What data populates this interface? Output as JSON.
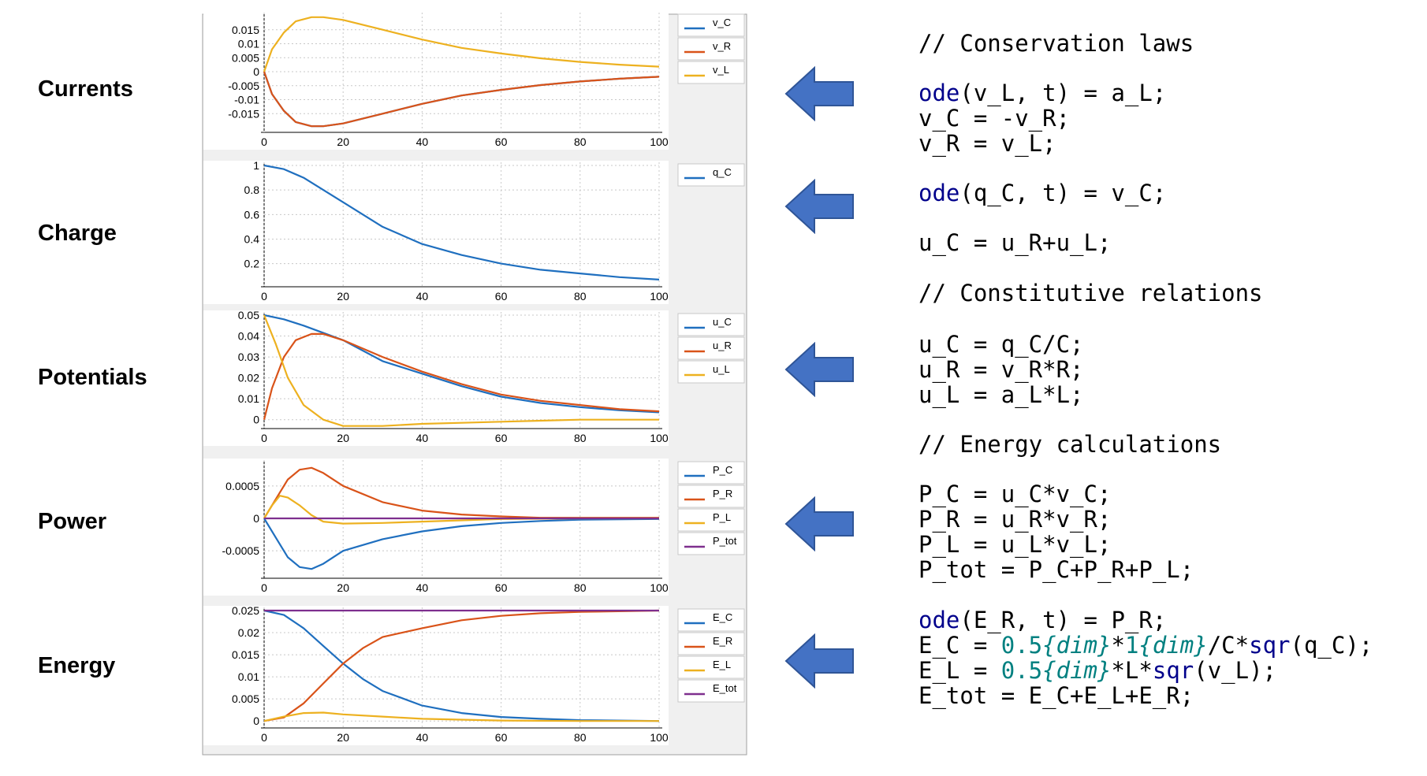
{
  "row_labels": [
    "Currents",
    "Charge",
    "Potentials",
    "Power",
    "Energy"
  ],
  "colors": {
    "blue": "#1f6fbf",
    "orange": "#d95319",
    "yellow": "#edb120",
    "purple": "#7e2f8e",
    "arrow_fill": "#4472c4",
    "arrow_stroke": "#2f5597"
  },
  "chart_data": [
    {
      "type": "line",
      "x_ticks": [
        0,
        20,
        40,
        60,
        80,
        100
      ],
      "y_ticks": [
        "0.015",
        "0.01",
        "0.005",
        "0",
        "-0.005",
        "-0.01",
        "-0.015"
      ],
      "ylim": [
        -0.02,
        0.02
      ],
      "xlim": [
        0,
        100
      ],
      "grid": true,
      "legend": [
        "v_C",
        "v_R",
        "v_L"
      ],
      "series": [
        {
          "name": "v_C",
          "color": "blue",
          "points": [
            [
              0,
              0
            ],
            [
              2,
              -0.008
            ],
            [
              5,
              -0.014
            ],
            [
              8,
              -0.018
            ],
            [
              12,
              -0.0195
            ],
            [
              15,
              -0.0195
            ],
            [
              20,
              -0.0185
            ],
            [
              30,
              -0.015
            ],
            [
              40,
              -0.0115
            ],
            [
              50,
              -0.0085
            ],
            [
              60,
              -0.0065
            ],
            [
              70,
              -0.0048
            ],
            [
              80,
              -0.0035
            ],
            [
              90,
              -0.0025
            ],
            [
              100,
              -0.0018
            ]
          ]
        },
        {
          "name": "v_R",
          "color": "orange",
          "points": [
            [
              0,
              0
            ],
            [
              2,
              -0.008
            ],
            [
              5,
              -0.014
            ],
            [
              8,
              -0.018
            ],
            [
              12,
              -0.0195
            ],
            [
              15,
              -0.0195
            ],
            [
              20,
              -0.0185
            ],
            [
              30,
              -0.015
            ],
            [
              40,
              -0.0115
            ],
            [
              50,
              -0.0085
            ],
            [
              60,
              -0.0065
            ],
            [
              70,
              -0.0048
            ],
            [
              80,
              -0.0035
            ],
            [
              90,
              -0.0025
            ],
            [
              100,
              -0.0018
            ]
          ]
        },
        {
          "name": "v_L",
          "color": "yellow",
          "points": [
            [
              0,
              0
            ],
            [
              2,
              0.008
            ],
            [
              5,
              0.014
            ],
            [
              8,
              0.018
            ],
            [
              12,
              0.0195
            ],
            [
              15,
              0.0195
            ],
            [
              20,
              0.0185
            ],
            [
              30,
              0.015
            ],
            [
              40,
              0.0115
            ],
            [
              50,
              0.0085
            ],
            [
              60,
              0.0065
            ],
            [
              70,
              0.0048
            ],
            [
              80,
              0.0035
            ],
            [
              90,
              0.0025
            ],
            [
              100,
              0.0018
            ]
          ]
        }
      ]
    },
    {
      "type": "line",
      "x_ticks": [
        0,
        20,
        40,
        60,
        80,
        100
      ],
      "y_ticks": [
        "1",
        "0.8",
        "0.6",
        "0.4",
        "0.2"
      ],
      "ylim": [
        0.05,
        1.0
      ],
      "xlim": [
        0,
        100
      ],
      "grid": true,
      "legend": [
        "q_C"
      ],
      "series": [
        {
          "name": "q_C",
          "color": "blue",
          "points": [
            [
              0,
              1
            ],
            [
              5,
              0.97
            ],
            [
              10,
              0.9
            ],
            [
              20,
              0.7
            ],
            [
              30,
              0.5
            ],
            [
              40,
              0.36
            ],
            [
              50,
              0.27
            ],
            [
              60,
              0.2
            ],
            [
              70,
              0.15
            ],
            [
              80,
              0.12
            ],
            [
              90,
              0.09
            ],
            [
              100,
              0.07
            ]
          ]
        }
      ]
    },
    {
      "type": "line",
      "x_ticks": [
        0,
        20,
        40,
        60,
        80,
        100
      ],
      "y_ticks": [
        "0.05",
        "0.04",
        "0.03",
        "0.02",
        "0.01",
        "0"
      ],
      "ylim": [
        -0.002,
        0.05
      ],
      "xlim": [
        0,
        100
      ],
      "grid": true,
      "legend": [
        "u_C",
        "u_R",
        "u_L"
      ],
      "series": [
        {
          "name": "u_C",
          "color": "blue",
          "points": [
            [
              0,
              0.05
            ],
            [
              5,
              0.048
            ],
            [
              10,
              0.045
            ],
            [
              20,
              0.038
            ],
            [
              30,
              0.028
            ],
            [
              40,
              0.022
            ],
            [
              50,
              0.016
            ],
            [
              60,
              0.011
            ],
            [
              70,
              0.008
            ],
            [
              80,
              0.006
            ],
            [
              90,
              0.0045
            ],
            [
              100,
              0.0035
            ]
          ]
        },
        {
          "name": "u_R",
          "color": "orange",
          "points": [
            [
              0,
              0
            ],
            [
              2,
              0.015
            ],
            [
              5,
              0.03
            ],
            [
              8,
              0.038
            ],
            [
              12,
              0.041
            ],
            [
              15,
              0.041
            ],
            [
              20,
              0.038
            ],
            [
              30,
              0.03
            ],
            [
              40,
              0.023
            ],
            [
              50,
              0.017
            ],
            [
              60,
              0.012
            ],
            [
              70,
              0.009
            ],
            [
              80,
              0.007
            ],
            [
              90,
              0.005
            ],
            [
              100,
              0.004
            ]
          ]
        },
        {
          "name": "u_L",
          "color": "yellow",
          "points": [
            [
              0,
              0.05
            ],
            [
              3,
              0.036
            ],
            [
              6,
              0.02
            ],
            [
              10,
              0.007
            ],
            [
              15,
              0.0
            ],
            [
              20,
              -0.003
            ],
            [
              30,
              -0.003
            ],
            [
              40,
              -0.002
            ],
            [
              50,
              -0.0015
            ],
            [
              60,
              -0.001
            ],
            [
              70,
              -0.0005
            ],
            [
              80,
              0
            ],
            [
              100,
              0
            ]
          ]
        }
      ]
    },
    {
      "type": "line",
      "x_ticks": [
        0,
        20,
        40,
        60,
        80,
        100
      ],
      "y_ticks": [
        "0.0005",
        "0",
        "-0.0005"
      ],
      "ylim": [
        -0.00085,
        0.00085
      ],
      "xlim": [
        0,
        100
      ],
      "grid": true,
      "legend": [
        "P_C",
        "P_R",
        "P_L",
        "P_tot"
      ],
      "series": [
        {
          "name": "P_C",
          "color": "blue",
          "points": [
            [
              0,
              0
            ],
            [
              3,
              -0.0003
            ],
            [
              6,
              -0.0006
            ],
            [
              9,
              -0.00075
            ],
            [
              12,
              -0.00078
            ],
            [
              15,
              -0.0007
            ],
            [
              20,
              -0.0005
            ],
            [
              30,
              -0.00032
            ],
            [
              40,
              -0.0002
            ],
            [
              50,
              -0.00012
            ],
            [
              60,
              -7e-05
            ],
            [
              70,
              -4e-05
            ],
            [
              80,
              -2e-05
            ],
            [
              100,
              -1e-05
            ]
          ]
        },
        {
          "name": "P_R",
          "color": "orange",
          "points": [
            [
              0,
              0
            ],
            [
              3,
              0.0003
            ],
            [
              6,
              0.0006
            ],
            [
              9,
              0.00075
            ],
            [
              12,
              0.00078
            ],
            [
              15,
              0.0007
            ],
            [
              20,
              0.0005
            ],
            [
              30,
              0.00025
            ],
            [
              40,
              0.00012
            ],
            [
              50,
              6e-05
            ],
            [
              60,
              3e-05
            ],
            [
              70,
              1e-05
            ],
            [
              80,
              1e-05
            ],
            [
              100,
              1e-05
            ]
          ]
        },
        {
          "name": "P_L",
          "color": "yellow",
          "points": [
            [
              0,
              0
            ],
            [
              2,
              0.0002
            ],
            [
              4,
              0.00035
            ],
            [
              6,
              0.00032
            ],
            [
              9,
              0.0002
            ],
            [
              12,
              5e-05
            ],
            [
              15,
              -5e-05
            ],
            [
              20,
              -8e-05
            ],
            [
              30,
              -7e-05
            ],
            [
              40,
              -5e-05
            ],
            [
              50,
              -3e-05
            ],
            [
              60,
              -1e-05
            ],
            [
              80,
              0
            ],
            [
              100,
              0
            ]
          ]
        },
        {
          "name": "P_tot",
          "color": "purple",
          "points": [
            [
              0,
              0
            ],
            [
              100,
              0
            ]
          ]
        }
      ]
    },
    {
      "type": "line",
      "x_ticks": [
        0,
        20,
        40,
        60,
        80,
        100
      ],
      "y_ticks": [
        "0.025",
        "0.02",
        "0.015",
        "0.01",
        "0.005",
        "0"
      ],
      "ylim": [
        -0.0005,
        0.025
      ],
      "xlim": [
        0,
        100
      ],
      "grid": true,
      "legend": [
        "E_C",
        "E_R",
        "E_L",
        "E_tot"
      ],
      "series": [
        {
          "name": "E_C",
          "color": "blue",
          "points": [
            [
              0,
              0.025
            ],
            [
              5,
              0.024
            ],
            [
              10,
              0.021
            ],
            [
              15,
              0.017
            ],
            [
              20,
              0.013
            ],
            [
              25,
              0.0095
            ],
            [
              30,
              0.0068
            ],
            [
              40,
              0.0035
            ],
            [
              50,
              0.0018
            ],
            [
              60,
              0.0009
            ],
            [
              70,
              0.0005
            ],
            [
              80,
              0.0002
            ],
            [
              100,
              0
            ]
          ]
        },
        {
          "name": "E_R",
          "color": "orange",
          "points": [
            [
              0,
              0
            ],
            [
              5,
              0.0008
            ],
            [
              10,
              0.004
            ],
            [
              15,
              0.0085
            ],
            [
              20,
              0.013
            ],
            [
              25,
              0.0165
            ],
            [
              30,
              0.019
            ],
            [
              40,
              0.021
            ],
            [
              50,
              0.0228
            ],
            [
              60,
              0.0238
            ],
            [
              70,
              0.0244
            ],
            [
              80,
              0.0247
            ],
            [
              100,
              0.025
            ]
          ]
        },
        {
          "name": "E_L",
          "color": "yellow",
          "points": [
            [
              0,
              0
            ],
            [
              5,
              0.001
            ],
            [
              10,
              0.0018
            ],
            [
              15,
              0.0019
            ],
            [
              20,
              0.0015
            ],
            [
              30,
              0.001
            ],
            [
              40,
              0.0005
            ],
            [
              50,
              0.0003
            ],
            [
              60,
              0.0001
            ],
            [
              80,
              0
            ],
            [
              100,
              0
            ]
          ]
        },
        {
          "name": "E_tot",
          "color": "purple",
          "points": [
            [
              0,
              0.025
            ],
            [
              100,
              0.025
            ]
          ]
        }
      ]
    }
  ],
  "code_lines": [
    {
      "segments": [
        {
          "t": "// Conservation laws",
          "c": "comment"
        }
      ]
    },
    {
      "segments": [
        {
          "t": "ode",
          "c": "kw"
        },
        {
          "t": "(v_L, t) = a_L;",
          "c": ""
        }
      ]
    },
    {
      "segments": [
        {
          "t": "v_C = -v_R;",
          "c": ""
        }
      ]
    },
    {
      "segments": [
        {
          "t": "v_R = v_L;",
          "c": ""
        }
      ]
    },
    {
      "segments": [
        {
          "t": "ode",
          "c": "kw"
        },
        {
          "t": "(q_C, t) = v_C;",
          "c": ""
        }
      ]
    },
    {
      "segments": [
        {
          "t": "u_C = u_R+u_L;",
          "c": ""
        }
      ]
    },
    {
      "segments": [
        {
          "t": "// Constitutive relations",
          "c": "comment"
        }
      ]
    },
    {
      "segments": [
        {
          "t": "u_C = q_C/C;",
          "c": ""
        }
      ]
    },
    {
      "segments": [
        {
          "t": "u_R = v_R*R;",
          "c": ""
        }
      ]
    },
    {
      "segments": [
        {
          "t": "u_L = a_L*L;",
          "c": ""
        }
      ]
    },
    {
      "segments": [
        {
          "t": "// Energy calculations",
          "c": "comment"
        }
      ]
    },
    {
      "segments": [
        {
          "t": "P_C = u_C*v_C;",
          "c": ""
        }
      ]
    },
    {
      "segments": [
        {
          "t": "P_R = u_R*v_R;",
          "c": ""
        }
      ]
    },
    {
      "segments": [
        {
          "t": "P_L = u_L*v_L;",
          "c": ""
        }
      ]
    },
    {
      "segments": [
        {
          "t": "P_tot = P_C+P_R+P_L;",
          "c": ""
        }
      ]
    },
    {
      "segments": [
        {
          "t": "ode",
          "c": "kw"
        },
        {
          "t": "(E_R, t) = P_R;",
          "c": ""
        }
      ]
    },
    {
      "segments": [
        {
          "t": "E_C = ",
          "c": ""
        },
        {
          "t": "0.5",
          "c": "num"
        },
        {
          "t": "{dim}",
          "c": "dim"
        },
        {
          "t": "*",
          "c": ""
        },
        {
          "t": "1",
          "c": "num"
        },
        {
          "t": "{dim}",
          "c": "dim"
        },
        {
          "t": "/C*",
          "c": ""
        },
        {
          "t": "sqr",
          "c": "kw"
        },
        {
          "t": "(q_C);",
          "c": ""
        }
      ]
    },
    {
      "segments": [
        {
          "t": "E_L = ",
          "c": ""
        },
        {
          "t": "0.5",
          "c": "num"
        },
        {
          "t": "{dim}",
          "c": "dim"
        },
        {
          "t": "*L*",
          "c": ""
        },
        {
          "t": "sqr",
          "c": "kw"
        },
        {
          "t": "(v_L);",
          "c": ""
        }
      ]
    },
    {
      "segments": [
        {
          "t": "E_tot = E_C+E_L+E_R;",
          "c": ""
        }
      ]
    }
  ]
}
